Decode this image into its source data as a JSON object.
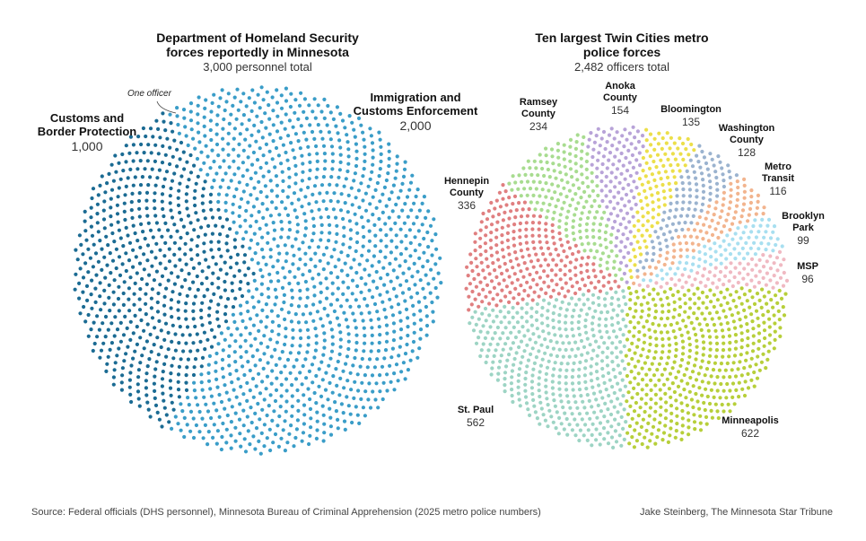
{
  "chart_data": [
    {
      "type": "pie",
      "title_lines": [
        "Department of Homeland Security",
        "forces reportedly in Minnesota"
      ],
      "subtitle": "3,000 personnel total",
      "annotation": "One officer",
      "series": [
        {
          "name_lines": [
            "Customs and",
            "Border Protection"
          ],
          "value_label": "1,000",
          "value": 1000,
          "color": "#1b6b93"
        },
        {
          "name_lines": [
            "Immigration and",
            "Customs Enforcement"
          ],
          "value_label": "2,000",
          "value": 2000,
          "color": "#3a9dc8"
        }
      ]
    },
    {
      "type": "pie",
      "title_lines": [
        "Ten largest Twin Cities metro",
        "police forces"
      ],
      "subtitle": "2,482 officers total",
      "series": [
        {
          "name_lines": [
            "Minneapolis"
          ],
          "value_label": "622",
          "value": 622,
          "color": "#b7cf3a"
        },
        {
          "name_lines": [
            "St. Paul"
          ],
          "value_label": "562",
          "value": 562,
          "color": "#9dd4c4"
        },
        {
          "name_lines": [
            "Hennepin",
            "County"
          ],
          "value_label": "336",
          "value": 336,
          "color": "#e07f80"
        },
        {
          "name_lines": [
            "Ramsey",
            "County"
          ],
          "value_label": "234",
          "value": 234,
          "color": "#a8dc90"
        },
        {
          "name_lines": [
            "Anoka",
            "County"
          ],
          "value_label": "154",
          "value": 154,
          "color": "#b8a3d8"
        },
        {
          "name_lines": [
            "Bloomington"
          ],
          "value_label": "135",
          "value": 135,
          "color": "#ecdf4a"
        },
        {
          "name_lines": [
            "Washington",
            "County"
          ],
          "value_label": "128",
          "value": 128,
          "color": "#9bb3cf"
        },
        {
          "name_lines": [
            "Metro",
            "Transit"
          ],
          "value_label": "116",
          "value": 116,
          "color": "#f2b48e"
        },
        {
          "name_lines": [
            "Brooklyn",
            "Park"
          ],
          "value_label": "99",
          "value": 99,
          "color": "#a8dff0"
        },
        {
          "name_lines": [
            "MSP"
          ],
          "value_label": "96",
          "value": 96,
          "color": "#f0b9c2"
        }
      ]
    }
  ],
  "footer": {
    "source": "Source: Federal officials (DHS personnel), Minnesota Bureau of Criminal Apprehension (2025 metro police numbers)",
    "credit": "Jake Steinberg, The Minnesota Star Tribune"
  }
}
